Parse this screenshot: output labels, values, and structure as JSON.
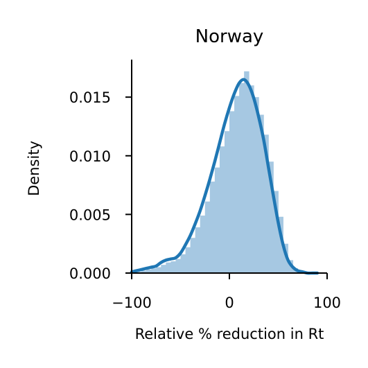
{
  "chart_data": {
    "type": "histogram",
    "title": "Norway",
    "xlabel": "Relative % reduction in Rt",
    "ylabel": "Density",
    "xlim": [
      -100,
      100
    ],
    "ylim": [
      0,
      0.0182
    ],
    "xticks": [
      -100,
      0,
      100
    ],
    "xtick_labels": [
      "−100",
      "0",
      "100"
    ],
    "yticks": [
      0,
      0.005,
      0.01,
      0.015
    ],
    "ytick_labels": [
      "0.000",
      "0.005",
      "0.010",
      "0.015"
    ],
    "grid": false,
    "histogram": {
      "color": "#a6c8e2",
      "bin_edges": [
        -100,
        -95,
        -90,
        -85,
        -80,
        -75,
        -70,
        -65,
        -60,
        -55,
        -50,
        -45,
        -40,
        -35,
        -30,
        -25,
        -20,
        -15,
        -10,
        -5,
        0,
        5,
        10,
        15,
        20,
        25,
        30,
        35,
        40,
        45,
        50,
        55,
        60,
        65,
        70,
        75,
        80,
        85,
        90
      ],
      "densities": [
        0.0001,
        0.0001,
        0.0002,
        0.0003,
        0.0004,
        0.0005,
        0.0007,
        0.0009,
        0.001,
        0.0012,
        0.0016,
        0.0022,
        0.003,
        0.0039,
        0.0049,
        0.0061,
        0.0078,
        0.009,
        0.0108,
        0.0121,
        0.0138,
        0.0151,
        0.0162,
        0.0172,
        0.016,
        0.015,
        0.0135,
        0.0118,
        0.0095,
        0.007,
        0.0048,
        0.0025,
        0.0011,
        0.0004,
        0.0002,
        0.0001,
        0.0001,
        0.0001
      ]
    },
    "kde": {
      "color": "#1f77b4",
      "x": [
        -100,
        -95,
        -90,
        -85,
        -80,
        -75,
        -70,
        -65,
        -60,
        -55,
        -50,
        -45,
        -40,
        -35,
        -30,
        -25,
        -20,
        -15,
        -10,
        -5,
        0,
        5,
        10,
        15,
        20,
        25,
        30,
        35,
        40,
        45,
        50,
        55,
        60,
        65,
        70,
        75,
        80,
        85,
        90
      ],
      "y": [
        0.0001,
        0.0002,
        0.0003,
        0.0004,
        0.0005,
        0.0006,
        0.0009,
        0.0011,
        0.0012,
        0.0013,
        0.0017,
        0.0024,
        0.0032,
        0.0042,
        0.0053,
        0.0066,
        0.008,
        0.0095,
        0.0111,
        0.0127,
        0.0141,
        0.0153,
        0.0162,
        0.0165,
        0.016,
        0.0149,
        0.0133,
        0.0114,
        0.009,
        0.0066,
        0.0043,
        0.0024,
        0.0011,
        0.0005,
        0.0002,
        0.0001,
        0.0,
        0.0,
        0.0
      ]
    }
  }
}
